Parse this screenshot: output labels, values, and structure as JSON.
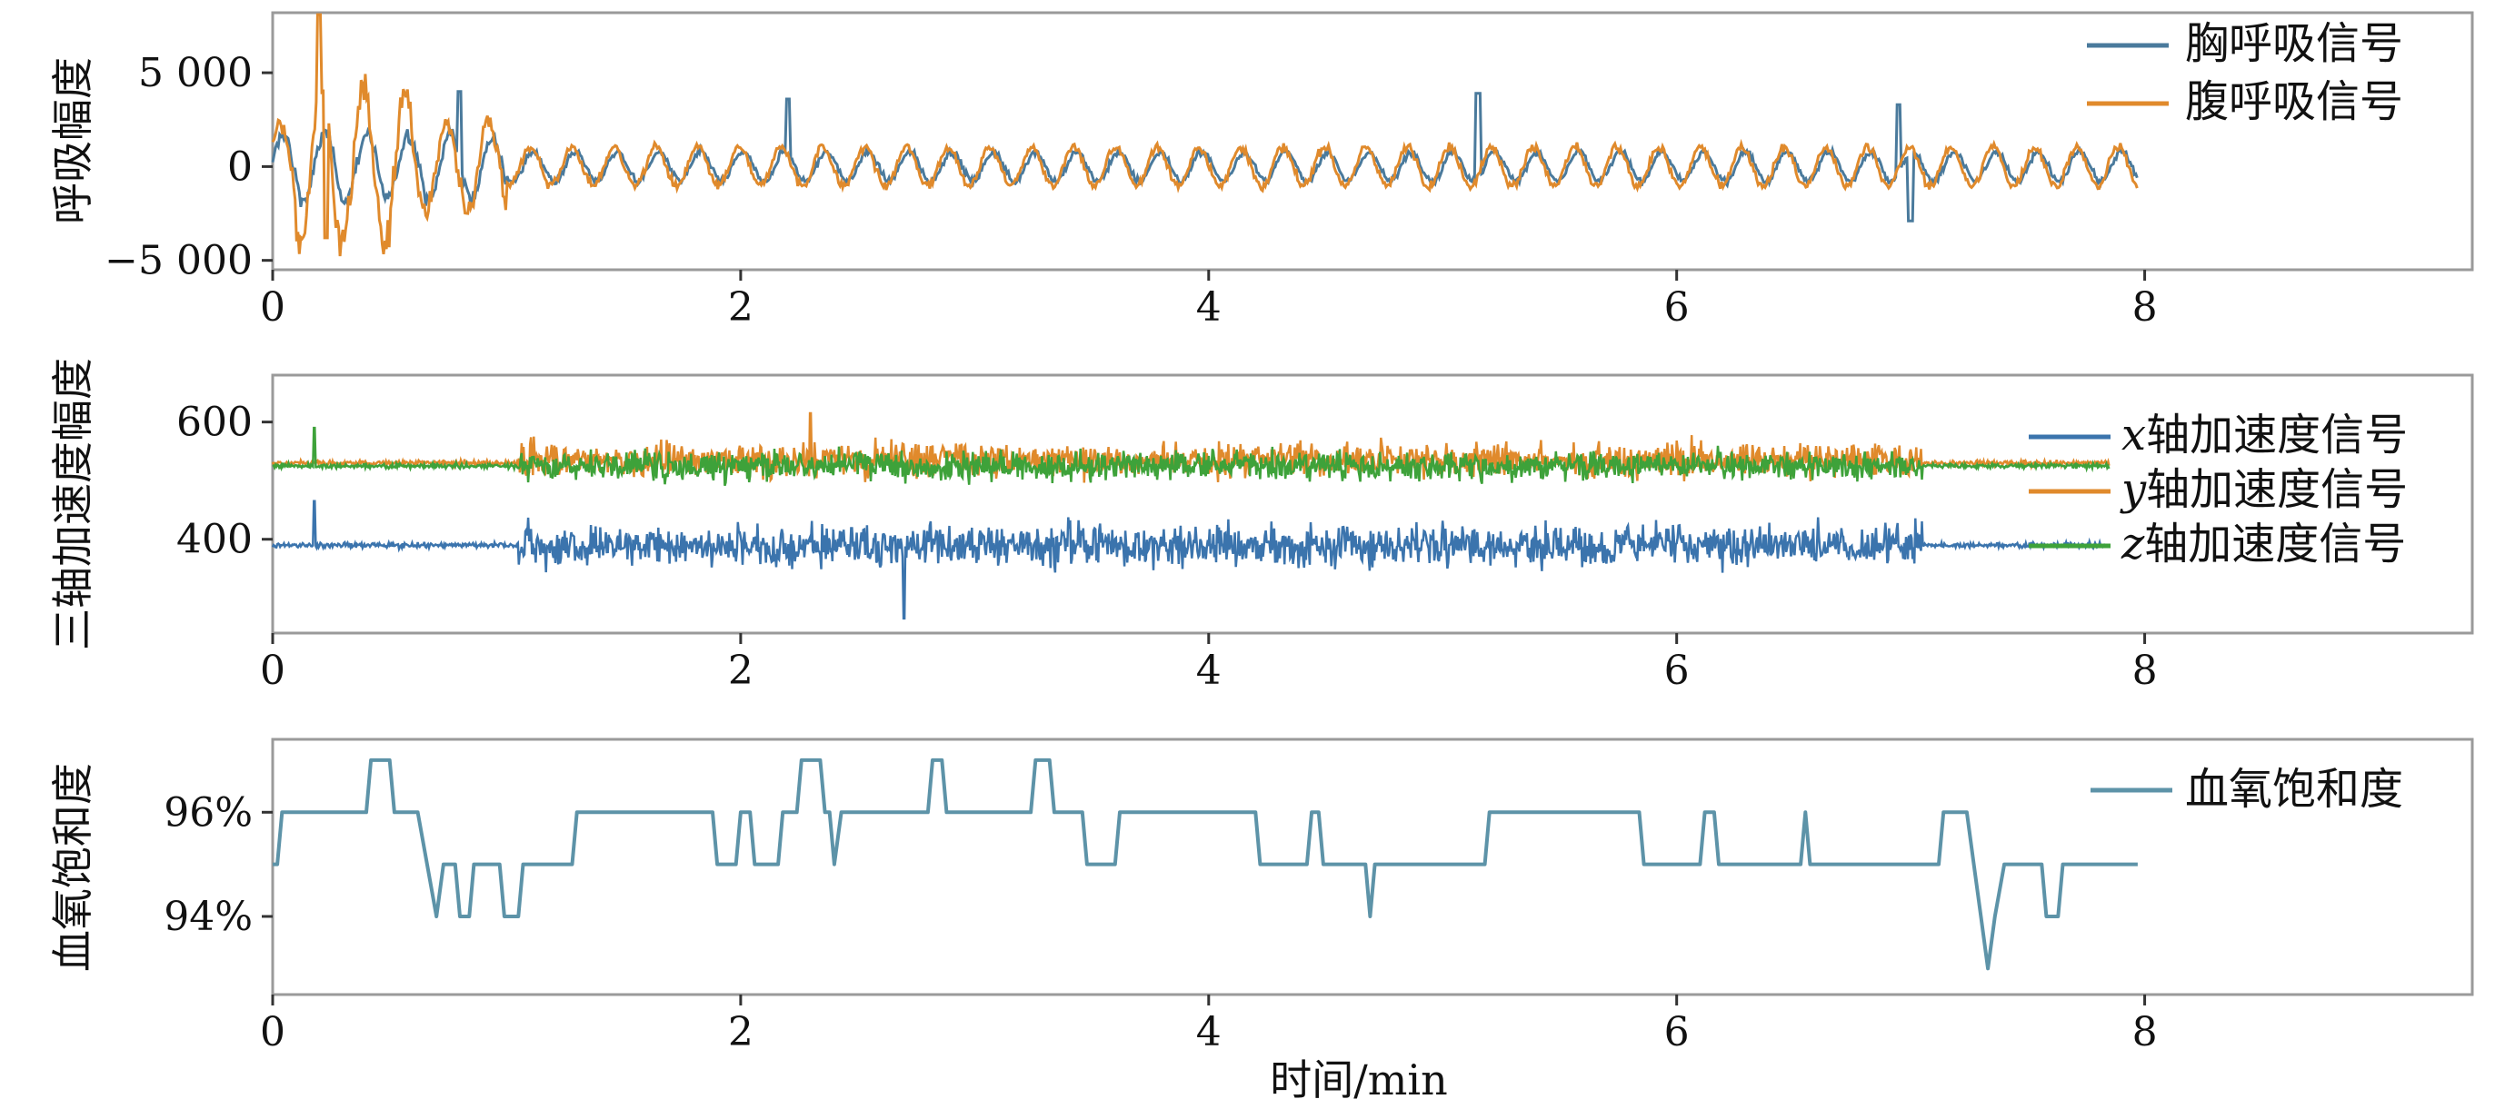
{
  "chart_data": [
    {
      "type": "line",
      "ylabel": "呼吸幅度",
      "xlim": [
        0,
        9.4
      ],
      "ylim": [
        -5500,
        8200
      ],
      "xticks": [
        "0",
        "2",
        "4",
        "6",
        "8"
      ],
      "yticks": [
        {
          "value": 5000,
          "label": "5 000"
        },
        {
          "value": 0,
          "label": "0"
        },
        {
          "value": -5000,
          "label": "−5 000"
        }
      ],
      "legend_position": "top-right",
      "grid": false,
      "series": [
        {
          "name": "胸呼吸信号",
          "color": "#4a7a9c"
        },
        {
          "name": "腹呼吸信号",
          "color": "#e08a2c"
        }
      ]
    },
    {
      "type": "line",
      "ylabel": "三轴加速度幅度",
      "xlim": [
        0,
        9.4
      ],
      "ylim": [
        240,
        680
      ],
      "xticks": [
        "0",
        "2",
        "4",
        "6",
        "8"
      ],
      "yticks": [
        {
          "value": 600,
          "label": "600"
        },
        {
          "value": 400,
          "label": "400"
        }
      ],
      "legend_position": "right",
      "grid": false,
      "series": [
        {
          "axis": "x",
          "name": "轴加速度信号",
          "color": "#3b74ad"
        },
        {
          "axis": "y",
          "name": "轴加速度信号",
          "color": "#e08a2c"
        },
        {
          "axis": "z",
          "name": "轴加速度信号",
          "color": "#3ea23a"
        }
      ]
    },
    {
      "type": "line",
      "ylabel": "血氧饱和度",
      "xlabel": "时间/min",
      "xlim": [
        0,
        9.4
      ],
      "ylim": [
        92.5,
        97.4
      ],
      "xticks": [
        "0",
        "2",
        "4",
        "6",
        "8"
      ],
      "yticks": [
        {
          "value": 96,
          "label": "96%"
        },
        {
          "value": 94,
          "label": "94%"
        }
      ],
      "legend_position": "top-right",
      "grid": false,
      "series": [
        {
          "name": "血氧饱和度",
          "color": "#5d93a8",
          "points": [
            [
              0,
              95
            ],
            [
              0.02,
              95
            ],
            [
              0.04,
              96
            ],
            [
              0.4,
              96
            ],
            [
              0.42,
              97
            ],
            [
              0.5,
              97
            ],
            [
              0.52,
              96
            ],
            [
              0.62,
              96
            ],
            [
              0.66,
              95
            ],
            [
              0.7,
              94
            ],
            [
              0.73,
              95
            ],
            [
              0.78,
              95
            ],
            [
              0.8,
              94
            ],
            [
              0.84,
              94
            ],
            [
              0.86,
              95
            ],
            [
              0.97,
              95
            ],
            [
              0.99,
              94
            ],
            [
              1.05,
              94
            ],
            [
              1.07,
              95
            ],
            [
              1.28,
              95
            ],
            [
              1.3,
              96
            ],
            [
              1.88,
              96
            ],
            [
              1.9,
              95
            ],
            [
              1.98,
              95
            ],
            [
              2.0,
              96
            ],
            [
              2.04,
              96
            ],
            [
              2.06,
              95
            ],
            [
              2.16,
              95
            ],
            [
              2.18,
              96
            ],
            [
              2.24,
              96
            ],
            [
              2.26,
              97
            ],
            [
              2.34,
              97
            ],
            [
              2.36,
              96
            ],
            [
              2.38,
              96
            ],
            [
              2.4,
              95
            ],
            [
              2.43,
              96
            ],
            [
              2.8,
              96
            ],
            [
              2.82,
              97
            ],
            [
              2.86,
              97
            ],
            [
              2.88,
              96
            ],
            [
              3.24,
              96
            ],
            [
              3.26,
              97
            ],
            [
              3.32,
              97
            ],
            [
              3.34,
              96
            ],
            [
              3.46,
              96
            ],
            [
              3.48,
              95
            ],
            [
              3.6,
              95
            ],
            [
              3.62,
              96
            ],
            [
              4.2,
              96
            ],
            [
              4.22,
              95
            ],
            [
              4.42,
              95
            ],
            [
              4.44,
              96
            ],
            [
              4.47,
              96
            ],
            [
              4.49,
              95
            ],
            [
              4.67,
              95
            ],
            [
              4.69,
              94
            ],
            [
              4.71,
              95
            ],
            [
              5.18,
              95
            ],
            [
              5.2,
              96
            ],
            [
              5.84,
              96
            ],
            [
              5.86,
              95
            ],
            [
              6.1,
              95
            ],
            [
              6.12,
              96
            ],
            [
              6.16,
              96
            ],
            [
              6.18,
              95
            ],
            [
              6.53,
              95
            ],
            [
              6.55,
              96
            ],
            [
              6.57,
              95
            ],
            [
              7.12,
              95
            ],
            [
              7.14,
              96
            ],
            [
              7.24,
              96
            ],
            [
              7.27,
              95
            ],
            [
              7.3,
              94
            ],
            [
              7.33,
              93
            ],
            [
              7.36,
              94
            ],
            [
              7.4,
              95
            ],
            [
              7.56,
              95
            ],
            [
              7.58,
              94
            ],
            [
              7.63,
              94
            ],
            [
              7.65,
              95
            ],
            [
              7.97,
              95
            ]
          ]
        }
      ]
    }
  ]
}
